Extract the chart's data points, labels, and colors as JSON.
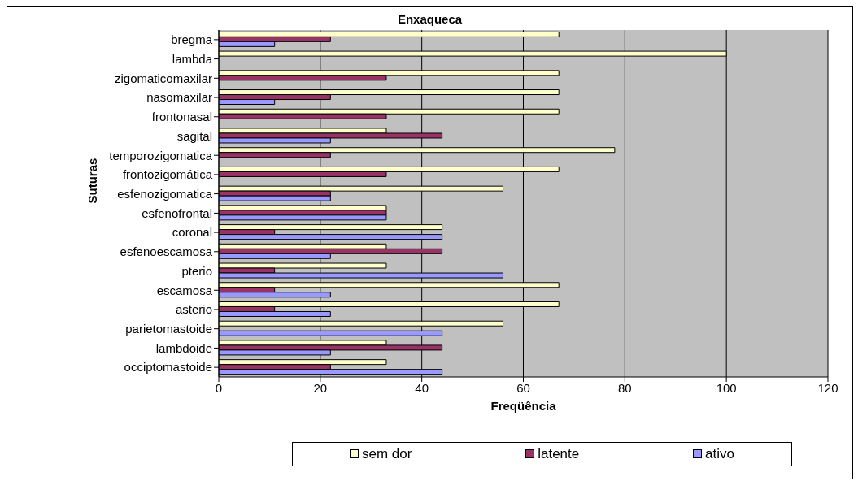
{
  "chart_data": {
    "type": "bar",
    "orientation": "horizontal",
    "title": "Enxaqueca",
    "xlabel": "Freqüência",
    "ylabel": "Suturas",
    "categories": [
      "bregma",
      "lambda",
      "zigomaticomaxilar",
      "nasomaxilar",
      "frontonasal",
      "sagital",
      "temporozigomatica",
      "frontozigomática",
      "esfenozigomatica",
      "esfenofrontal",
      "coronal",
      "esfenoescamosa",
      "pterio",
      "escamosa",
      "asterio",
      "parietomastoide",
      "lambdoide",
      "occiptomastoide"
    ],
    "series": [
      {
        "name": "sem dor",
        "color": "#ffffcc",
        "values": [
          67,
          100,
          67,
          67,
          67,
          33,
          78,
          67,
          56,
          33,
          44,
          33,
          33,
          67,
          67,
          56,
          33,
          33
        ]
      },
      {
        "name": "latente",
        "color": "#993366",
        "values": [
          22,
          0,
          33,
          22,
          33,
          44,
          22,
          33,
          22,
          33,
          11,
          44,
          11,
          11,
          11,
          0,
          44,
          22
        ]
      },
      {
        "name": "ativo",
        "color": "#9999ff",
        "values": [
          11,
          0,
          0,
          11,
          0,
          22,
          0,
          0,
          22,
          33,
          44,
          22,
          56,
          22,
          22,
          44,
          22,
          44
        ]
      }
    ],
    "xlim": [
      0,
      120
    ],
    "xticks": [
      0,
      20,
      40,
      60,
      80,
      100,
      120
    ],
    "grid": "x",
    "legend": "bottom"
  }
}
